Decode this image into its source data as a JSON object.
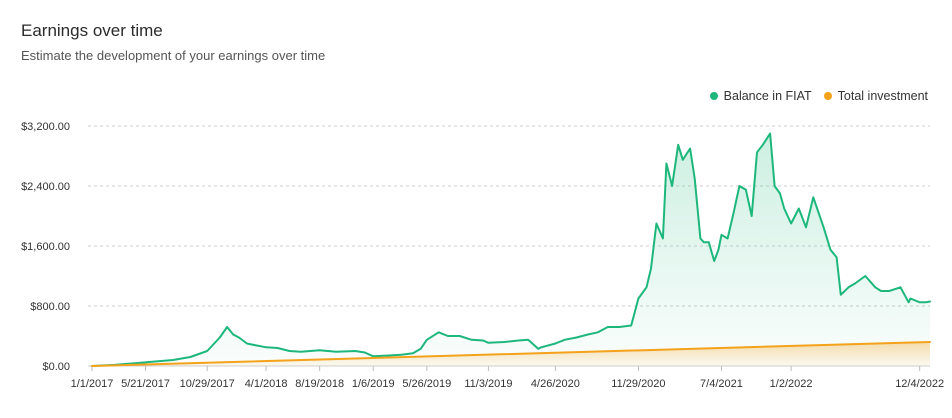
{
  "header": {
    "title": "Earnings over time",
    "subtitle": "Estimate the development of your earnings over time"
  },
  "legend": {
    "items": [
      {
        "label": "Balance in FIAT",
        "color": "#1db77c"
      },
      {
        "label": "Total investment",
        "color": "#f4a21b"
      }
    ]
  },
  "chart_data": {
    "type": "area",
    "title": "Earnings over time",
    "subtitle": "Estimate the development of your earnings over time",
    "xlim": [
      "2017-01-01",
      "2022-12-31"
    ],
    "ylim": [
      0,
      3200
    ],
    "y_ticks": [
      0,
      800,
      1600,
      2400,
      3200
    ],
    "y_tick_labels": [
      "$0.00",
      "$800.00",
      "$1,600.00",
      "$2,400.00",
      "$3,200.00"
    ],
    "x_tick_labels": [
      "1/1/2017",
      "5/21/2017",
      "10/29/2017",
      "4/1/2018",
      "8/19/2018",
      "1/6/2019",
      "5/26/2019",
      "11/3/2019",
      "4/26/2020",
      "11/29/2020",
      "7/4/2021",
      "1/2/2022",
      "12/4/2022"
    ],
    "grid": true,
    "legend_position": "top-right",
    "series": [
      {
        "name": "Balance in FIAT",
        "color": "#1db77c",
        "x": [
          "2017-01-01",
          "2017-03-01",
          "2017-05-01",
          "2017-06-15",
          "2017-08-01",
          "2017-09-15",
          "2017-10-29",
          "2017-12-01",
          "2017-12-20",
          "2018-01-05",
          "2018-01-20",
          "2018-02-10",
          "2018-03-01",
          "2018-04-01",
          "2018-05-01",
          "2018-06-01",
          "2018-07-01",
          "2018-08-19",
          "2018-10-01",
          "2018-11-20",
          "2018-12-15",
          "2019-01-06",
          "2019-02-15",
          "2019-03-20",
          "2019-04-20",
          "2019-05-10",
          "2019-05-26",
          "2019-06-26",
          "2019-07-20",
          "2019-08-20",
          "2019-09-20",
          "2019-10-20",
          "2019-11-03",
          "2019-12-15",
          "2020-01-20",
          "2020-02-15",
          "2020-03-12",
          "2020-03-20",
          "2020-04-26",
          "2020-05-20",
          "2020-06-20",
          "2020-07-20",
          "2020-08-15",
          "2020-09-10",
          "2020-10-10",
          "2020-11-10",
          "2020-11-29",
          "2020-12-20",
          "2021-01-01",
          "2021-01-15",
          "2021-02-01",
          "2021-02-10",
          "2021-02-25",
          "2021-03-13",
          "2021-03-25",
          "2021-04-13",
          "2021-04-25",
          "2021-05-10",
          "2021-05-19",
          "2021-06-01",
          "2021-06-15",
          "2021-06-26",
          "2021-07-04",
          "2021-07-20",
          "2021-08-05",
          "2021-08-20",
          "2021-09-06",
          "2021-09-21",
          "2021-10-05",
          "2021-10-20",
          "2021-11-08",
          "2021-11-20",
          "2021-12-04",
          "2021-12-15",
          "2022-01-02",
          "2022-01-22",
          "2022-02-10",
          "2022-03-01",
          "2022-03-28",
          "2022-04-15",
          "2022-05-01",
          "2022-05-12",
          "2022-06-01",
          "2022-06-18",
          "2022-07-15",
          "2022-08-10",
          "2022-08-25",
          "2022-09-15",
          "2022-10-15",
          "2022-11-05",
          "2022-11-10",
          "2022-12-04",
          "2022-12-20",
          "2022-12-31"
        ],
        "values": [
          0,
          15,
          40,
          60,
          80,
          120,
          200,
          380,
          520,
          420,
          380,
          300,
          280,
          250,
          240,
          200,
          190,
          210,
          190,
          200,
          180,
          130,
          140,
          150,
          170,
          230,
          350,
          450,
          400,
          400,
          350,
          340,
          310,
          320,
          340,
          350,
          230,
          250,
          300,
          350,
          380,
          420,
          450,
          520,
          520,
          540,
          900,
          1050,
          1300,
          1900,
          1700,
          2700,
          2400,
          2950,
          2750,
          2900,
          2500,
          1700,
          1650,
          1650,
          1400,
          1550,
          1750,
          1700,
          2050,
          2400,
          2350,
          2000,
          2850,
          2950,
          3100,
          2400,
          2300,
          2100,
          1900,
          2100,
          1850,
          2250,
          1850,
          1550,
          1450,
          950,
          1050,
          1100,
          1200,
          1050,
          1000,
          1000,
          1050,
          850,
          900,
          850,
          850,
          860
        ]
      },
      {
        "name": "Total investment",
        "color": "#f4a21b",
        "x": [
          "2017-01-01",
          "2022-12-31"
        ],
        "values": [
          0,
          320
        ]
      }
    ]
  }
}
